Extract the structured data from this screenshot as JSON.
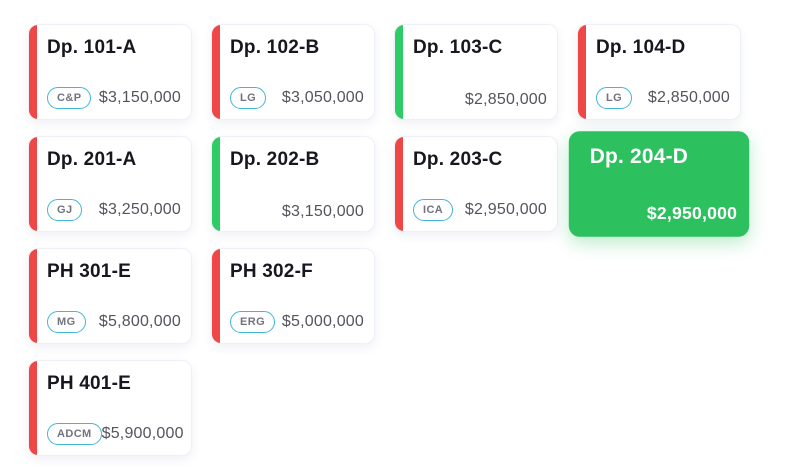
{
  "board": {
    "floors": [
      {
        "name": "floor-1",
        "units": [
          {
            "title": "Dp. 101-A",
            "badge": "C&P",
            "price": "$3,150,000",
            "status": "red",
            "selected": false
          },
          {
            "title": "Dp. 102-B",
            "badge": "LG",
            "price": "$3,050,000",
            "status": "red",
            "selected": false
          },
          {
            "title": "Dp. 103-C",
            "badge": "",
            "price": "$2,850,000",
            "status": "green",
            "selected": false
          },
          {
            "title": "Dp. 104-D",
            "badge": "LG",
            "price": "$2,850,000",
            "status": "red",
            "selected": false
          }
        ]
      },
      {
        "name": "floor-2",
        "units": [
          {
            "title": "Dp. 201-A",
            "badge": "GJ",
            "price": "$3,250,000",
            "status": "red",
            "selected": false
          },
          {
            "title": "Dp. 202-B",
            "badge": "",
            "price": "$3,150,000",
            "status": "green",
            "selected": false
          },
          {
            "title": "Dp. 203-C",
            "badge": "ICA",
            "price": "$2,950,000",
            "status": "red",
            "selected": false
          },
          {
            "title": "Dp. 204-D",
            "badge": "",
            "price": "$2,950,000",
            "status": "green",
            "selected": true
          }
        ]
      },
      {
        "name": "floor-3",
        "units": [
          {
            "title": "PH 301-E",
            "badge": "MG",
            "price": "$5,800,000",
            "status": "red",
            "selected": false
          },
          {
            "title": "PH 302-F",
            "badge": "ERG",
            "price": "$5,000,000",
            "status": "red",
            "selected": false
          }
        ]
      },
      {
        "name": "floor-4",
        "units": [
          {
            "title": "PH 401-E",
            "badge": "ADCM",
            "price": "$5,900,000",
            "status": "red",
            "selected": false
          }
        ]
      }
    ]
  },
  "colors": {
    "status_red": "#ef4646",
    "status_green": "#2ecc66",
    "selected_bg": "#2cc05f",
    "badge_border": "#41b6d6",
    "badge_text": "#73737d",
    "title_text": "#17171f",
    "price_text": "#54545d",
    "card_border": "#edf0f6"
  }
}
